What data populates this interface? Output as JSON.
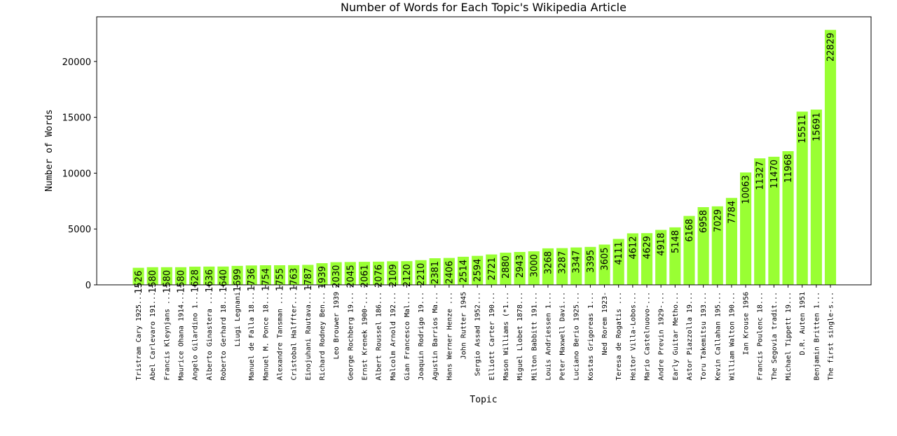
{
  "chart_data": {
    "type": "bar",
    "title": "Number of Words for Each Topic's Wikipedia Article",
    "xlabel": "Topic",
    "ylabel": "Number of Words",
    "ylim": [
      0,
      24000
    ],
    "yticks": [
      0,
      5000,
      10000,
      15000,
      20000
    ],
    "bar_color": "#99ff33",
    "grid": false,
    "categories": [
      "Tristram Cary 1925...",
      "Abel Carlevaro 191...",
      "Francis Kleynjans ...",
      "Maurice Ohana 1914...",
      "Angelo Gilardino 1...",
      "Alberto Ginastera ...",
      "Roberto Gerhard 18...",
      "Liugi Legnani",
      "Manuel de Falla 18...",
      "Manuel M. Ponce 18...",
      "Alexandre Tansman ...",
      "Cristobal Halffter...",
      "Einojuhani Rautava...",
      "Richard Rodney Ben...",
      "Leo Brouwer 1939",
      "George Rochberg 19...",
      "Ernst Krenek 1900-...",
      "Albert Roussel 186...",
      "Malcolm Arnold 192...",
      "Gian Francesco Mal...",
      "Joaquin Rodrigo 19...",
      "Agustin Barrios Ma...",
      "Hans Werner Henze ...",
      "John Rutter 1945",
      "Sergio Assad 1952...",
      "Elliott Carter 190...",
      "Mason Williams (*1...",
      "Miguel Llobet 1878...",
      "Milton Babbitt 191...",
      "Louis Andriessen 1...",
      "Peter Maxwell Davi...",
      "Luciano Berio 1925...",
      "Kostas Grigoreas 1...",
      "Ned Rorem 1923-",
      "Teresa de Rogatis ...",
      "Heitor Villa-Lobos...",
      "Mario Castelnuovo-...",
      "Andre Previn 1929-...",
      "Early Guitar Metho...",
      "Astor Piazzolla 19...",
      "Toru Takemitsu 193...",
      "Kevin Callahan 195...",
      "William Walton 190...",
      "Ian Krouse 1956",
      "Francis Poulenc 18...",
      "The Segovia tradit...",
      "Michael Tippett 19...",
      "D.R. Auten 1951",
      "Benjamin Britten 1...",
      "The first single-s..."
    ],
    "values": [
      1526,
      1580,
      1580,
      1580,
      1628,
      1636,
      1640,
      1699,
      1736,
      1754,
      1755,
      1763,
      1787,
      1939,
      2030,
      2045,
      2061,
      2076,
      2109,
      2120,
      2210,
      2381,
      2406,
      2514,
      2594,
      2721,
      2880,
      2943,
      3000,
      3268,
      3287,
      3347,
      3395,
      3605,
      4111,
      4612,
      4629,
      4918,
      5148,
      6168,
      6958,
      7029,
      7784,
      10063,
      11327,
      11470,
      11968,
      15511,
      15691,
      22829
    ]
  }
}
